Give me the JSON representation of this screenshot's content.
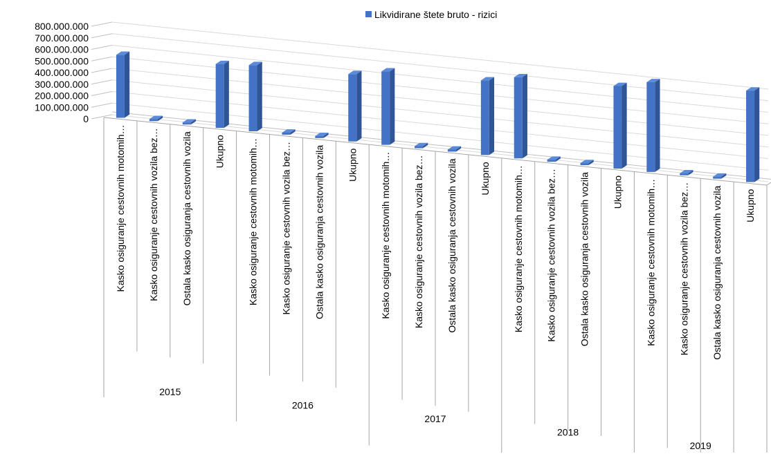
{
  "chart_data": {
    "type": "bar",
    "title": "",
    "xlabel": "",
    "ylabel": "",
    "ylim": [
      0,
      800000000
    ],
    "y_ticks": [
      "0",
      "100.000.000",
      "200.000.000",
      "300.000.000",
      "400.000.000",
      "500.000.000",
      "600.000.000",
      "700.000.000",
      "800.000.000"
    ],
    "legend": {
      "position": "top",
      "entries": [
        "Likvidirane štete bruto - rizici"
      ]
    },
    "grid": true,
    "groups": [
      "2015",
      "2016",
      "2017",
      "2018",
      "2019"
    ],
    "category_labels": [
      "Kasko osiguranje cestovnih motomih…",
      "Kasko osiguranje cestovnih vozila bez…",
      "Ostala kasko osiguranja cestovnih vozila",
      "Ukupno"
    ],
    "series": [
      {
        "name": "Likvidirane štete bruto - rizici",
        "color": "#4472C4",
        "values": [
          [
            540000000,
            3000000,
            4000000,
            548000000
          ],
          [
            568000000,
            4000000,
            5000000,
            578000000
          ],
          [
            630000000,
            5000000,
            6000000,
            640000000
          ],
          [
            696000000,
            6000000,
            7000000,
            708000000
          ],
          [
            770000000,
            7000000,
            8000000,
            785000000
          ]
        ]
      }
    ]
  }
}
